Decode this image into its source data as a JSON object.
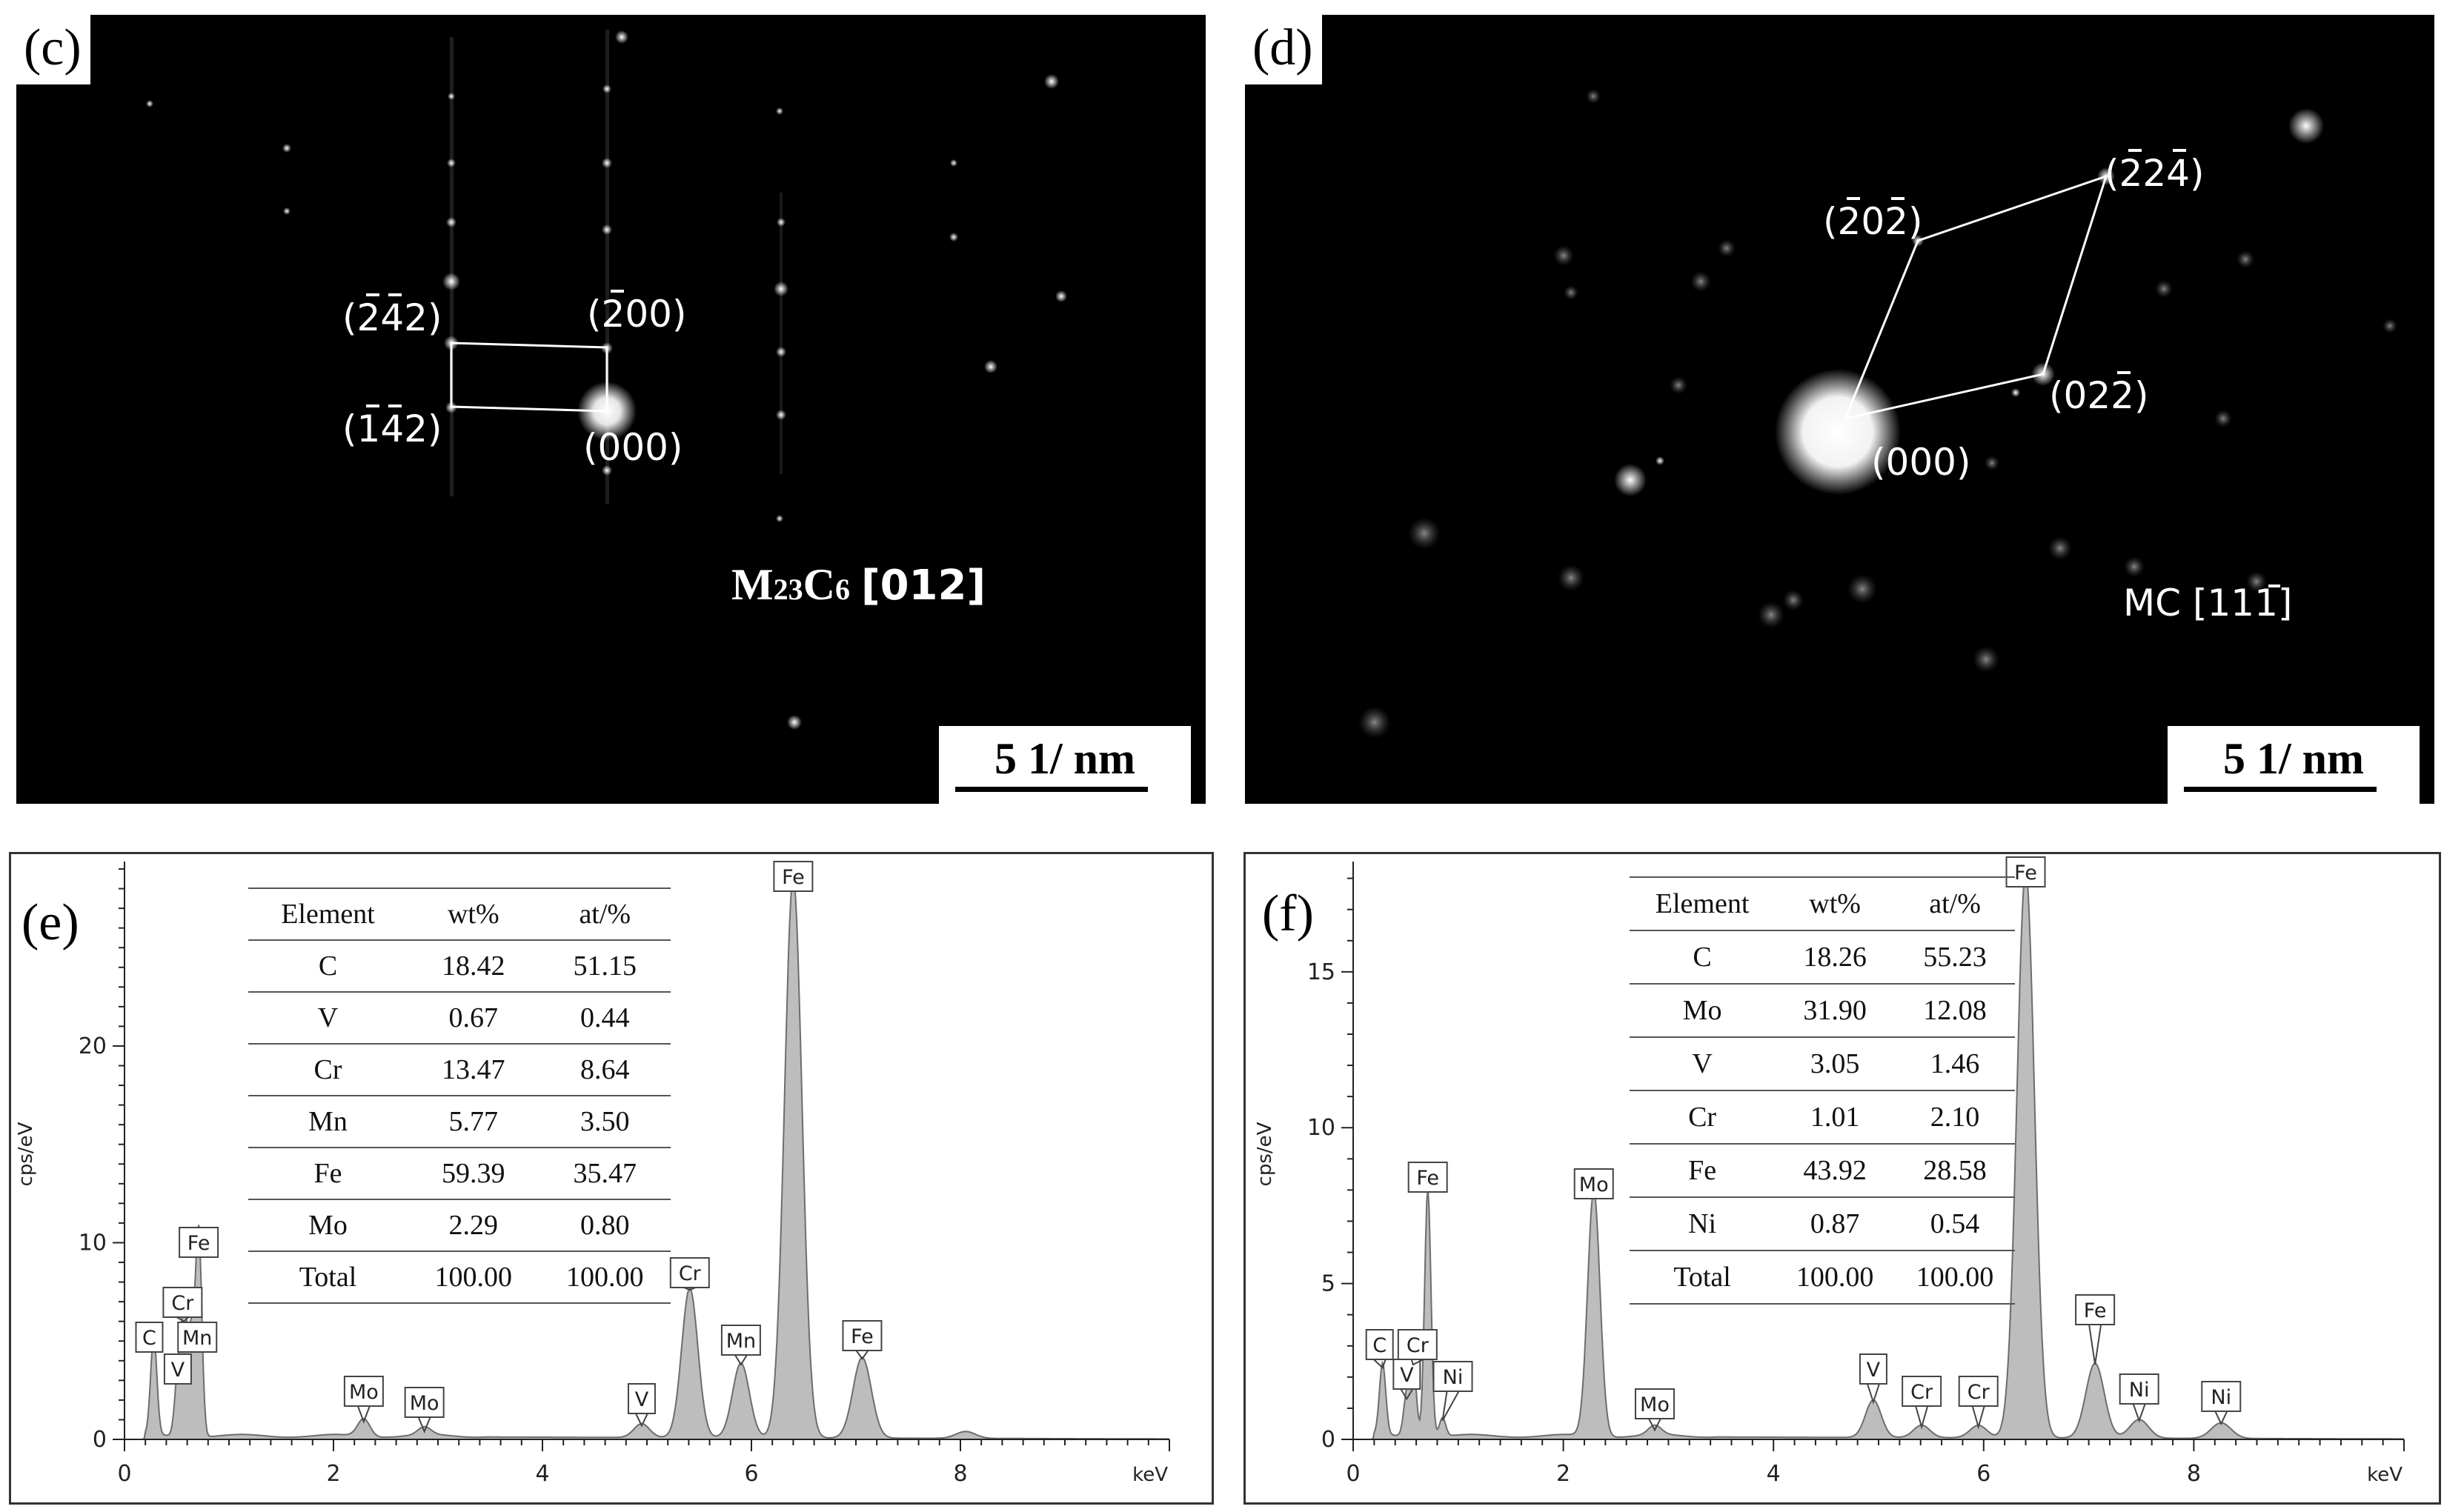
{
  "panels": {
    "c": {
      "label": "(c)",
      "phase_main": "M",
      "phase_sub1": "23",
      "phase_mid": "C",
      "phase_sub2": "6",
      "zone_axis": "[012]",
      "scale": "5 1/ nm",
      "spots": [
        {
          "overbar": "2 4",
          "text": "(242)"
        },
        {
          "overbar": "2",
          "text": "(200)"
        },
        {
          "overbar": "1 4",
          "text": "(142)"
        },
        {
          "overbar": "",
          "text": "(000)"
        }
      ]
    },
    "d": {
      "label": "(d)",
      "phase": "MC [111]",
      "scale": "5 1/ nm",
      "spots": [
        {
          "text": "(202)"
        },
        {
          "text": "(224)"
        },
        {
          "text": "(022)"
        },
        {
          "text": "(000)"
        }
      ]
    },
    "e": {
      "label": "(e)",
      "y_axis_label": "cps/eV",
      "x_axis_unit": "keV",
      "table_headers": [
        "Element",
        "wt%",
        "at/%"
      ],
      "table_rows": [
        [
          "C",
          "18.42",
          "51.15"
        ],
        [
          "V",
          "0.67",
          "0.44"
        ],
        [
          "Cr",
          "13.47",
          "8.64"
        ],
        [
          "Mn",
          "5.77",
          "3.50"
        ],
        [
          "Fe",
          "59.39",
          "35.47"
        ],
        [
          "Mo",
          "2.29",
          "0.80"
        ],
        [
          "Total",
          "100.00",
          "100.00"
        ]
      ]
    },
    "f": {
      "label": "(f)",
      "y_axis_label": "cps/eV",
      "x_axis_unit": "keV",
      "table_headers": [
        "Element",
        "wt%",
        "at/%"
      ],
      "table_rows": [
        [
          "C",
          "18.26",
          "55.23"
        ],
        [
          "Mo",
          "31.90",
          "12.08"
        ],
        [
          "V",
          "3.05",
          "1.46"
        ],
        [
          "Cr",
          "1.01",
          "2.10"
        ],
        [
          "Fe",
          "43.92",
          "28.58"
        ],
        [
          "Ni",
          "0.87",
          "0.54"
        ],
        [
          "Total",
          "100.00",
          "100.00"
        ]
      ]
    }
  },
  "chart_data": [
    {
      "type": "line",
      "panel": "e",
      "xlabel": "keV",
      "ylabel": "cps/eV",
      "xlim": [
        0,
        10
      ],
      "ylim": [
        0,
        29
      ],
      "x_ticks": [
        0,
        2,
        4,
        6,
        8
      ],
      "y_ticks": [
        0,
        10,
        20
      ],
      "peaks": [
        {
          "label": "C",
          "x": 0.28,
          "y": 5.0
        },
        {
          "label": "V",
          "x": 0.51,
          "y": 3.0
        },
        {
          "label": "Cr",
          "x": 0.57,
          "y": 6.0
        },
        {
          "label": "Mn",
          "x": 0.64,
          "y": 5.0
        },
        {
          "label": "Fe",
          "x": 0.71,
          "y": 10.5
        },
        {
          "label": "Mo",
          "x": 2.29,
          "y": 0.9
        },
        {
          "label": "Mo",
          "x": 2.87,
          "y": 0.4
        },
        {
          "label": "V",
          "x": 4.95,
          "y": 0.7
        },
        {
          "label": "Cr",
          "x": 5.41,
          "y": 7.6
        },
        {
          "label": "Mn",
          "x": 5.9,
          "y": 3.8
        },
        {
          "label": "Fe",
          "x": 6.4,
          "y": 28.5
        },
        {
          "label": "Fe",
          "x": 7.06,
          "y": 4.1
        },
        {
          "label": "",
          "x": 8.05,
          "y": 0.35
        }
      ]
    },
    {
      "type": "line",
      "panel": "f",
      "xlabel": "keV",
      "ylabel": "cps/eV",
      "xlim": [
        0,
        10
      ],
      "ylim": [
        0,
        18.3
      ],
      "x_ticks": [
        0,
        2,
        4,
        6,
        8
      ],
      "y_ticks": [
        0,
        5,
        10,
        15
      ],
      "peaks": [
        {
          "label": "C",
          "x": 0.28,
          "y": 2.3
        },
        {
          "label": "V",
          "x": 0.51,
          "y": 1.3
        },
        {
          "label": "Cr",
          "x": 0.57,
          "y": 2.4
        },
        {
          "label": "Ni",
          "x": 0.85,
          "y": 0.6
        },
        {
          "label": "Fe",
          "x": 0.71,
          "y": 8.0
        },
        {
          "label": "Mo",
          "x": 2.29,
          "y": 7.9
        },
        {
          "label": "Mo",
          "x": 2.87,
          "y": 0.3
        },
        {
          "label": "V",
          "x": 4.95,
          "y": 1.2
        },
        {
          "label": "Cr",
          "x": 5.41,
          "y": 0.4
        },
        {
          "label": "Cr",
          "x": 5.95,
          "y": 0.4
        },
        {
          "label": "Fe",
          "x": 6.4,
          "y": 18.2
        },
        {
          "label": "Fe",
          "x": 7.06,
          "y": 2.4
        },
        {
          "label": "Ni",
          "x": 7.48,
          "y": 0.6
        },
        {
          "label": "Ni",
          "x": 8.26,
          "y": 0.5
        }
      ]
    }
  ]
}
